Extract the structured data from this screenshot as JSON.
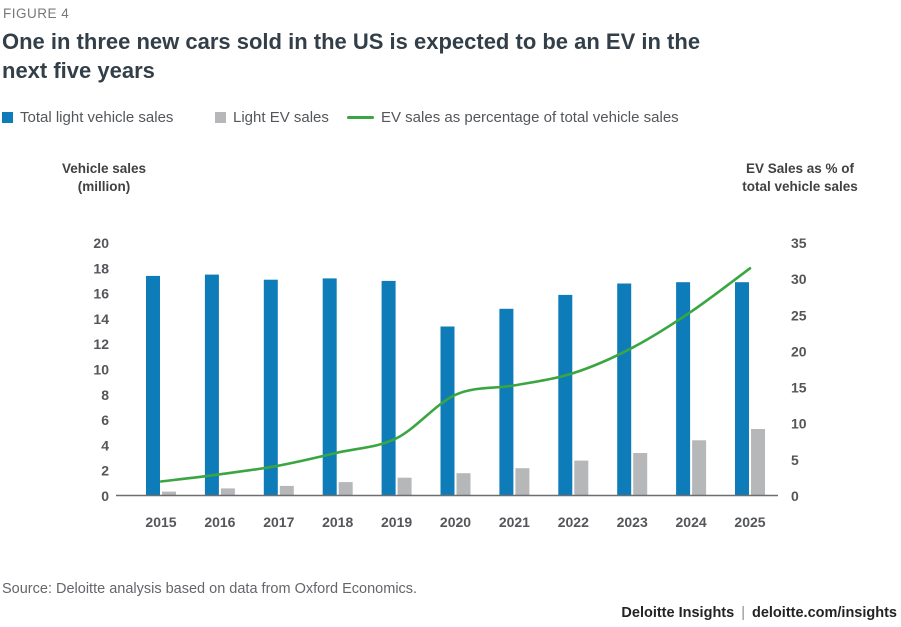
{
  "figure_label": "FIGURE 4",
  "title_lines": [
    "One in three new cars sold in the US is expected to be an EV in the",
    "next five years"
  ],
  "legend": {
    "items": [
      {
        "label": "Total light vehicle sales",
        "swatch": "blue-square"
      },
      {
        "label": "Light EV sales",
        "swatch": "gray-square"
      },
      {
        "label": "EV sales as percentage of total vehicle sales",
        "swatch": "green-line"
      }
    ]
  },
  "colors": {
    "total_sales_blue": "#0e7cb8",
    "ev_sales_gray": "#b6b7b8",
    "ev_pct_green": "#3aa642",
    "axis_line": "#6d6e71",
    "title_text": "#333f48",
    "body_text": "#53565a"
  },
  "chart_data": {
    "type": "combo-bar-line",
    "categories": [
      "2015",
      "2016",
      "2017",
      "2018",
      "2019",
      "2020",
      "2021",
      "2022",
      "2023",
      "2024",
      "2025"
    ],
    "series": [
      {
        "name": "Total light vehicle sales",
        "type": "bar",
        "axis": "left",
        "color": "#0e7cb8",
        "values": [
          17.4,
          17.5,
          17.1,
          17.2,
          17.0,
          13.4,
          14.8,
          15.9,
          16.8,
          16.9,
          16.9
        ]
      },
      {
        "name": "Light EV sales",
        "type": "bar",
        "axis": "left",
        "color": "#b6b7b8",
        "values": [
          0.35,
          0.6,
          0.8,
          1.1,
          1.45,
          1.8,
          2.2,
          2.8,
          3.4,
          4.4,
          5.3
        ]
      },
      {
        "name": "EV sales as percentage of total vehicle sales",
        "type": "line",
        "axis": "right",
        "color": "#3aa642",
        "values": [
          2.0,
          3.0,
          4.2,
          6.0,
          8.0,
          14.0,
          15.3,
          17.0,
          20.5,
          25.5,
          31.5
        ]
      }
    ],
    "left_axis": {
      "title_lines": [
        "Vehicle sales",
        "(million)"
      ],
      "range": [
        0,
        20
      ],
      "ticks": [
        0,
        2,
        4,
        6,
        8,
        10,
        12,
        14,
        16,
        18,
        20
      ]
    },
    "right_axis": {
      "title_lines": [
        "EV Sales as % of",
        "total vehicle sales"
      ],
      "range": [
        0,
        35
      ],
      "ticks": [
        0,
        5,
        10,
        15,
        20,
        25,
        30,
        35
      ]
    },
    "grid": false,
    "legend_position": "top"
  },
  "source": "Source: Deloitte analysis based on data from Oxford Economics.",
  "footer": {
    "brand": "Deloitte Insights",
    "separator": "|",
    "link": "deloitte.com/insights"
  }
}
